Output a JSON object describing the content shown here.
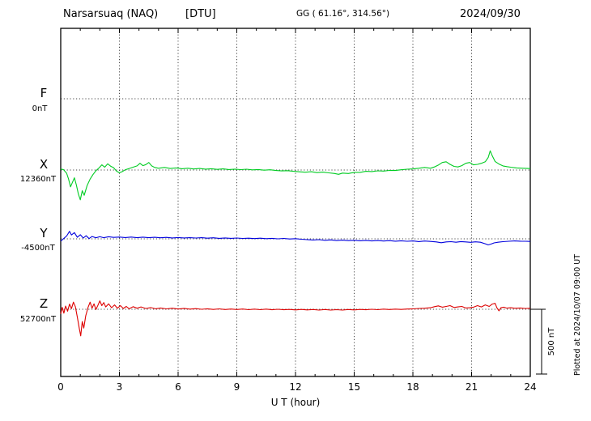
{
  "header": {
    "station": "Narsarsuaq (NAQ)",
    "institute": "[DTU]",
    "coords": "GG ( 61.16°, 314.56°)",
    "date": "2024/09/30"
  },
  "scale_bar": {
    "label": "500 nT"
  },
  "footer": {
    "plotted_at": "Plotted at 2024/10/07 09:00 UT"
  },
  "chart_data": {
    "type": "line",
    "title": "Narsarsuaq (NAQ) [DTU] magnetogram 2024/09/30",
    "xlabel": "U T (hour)",
    "x_range": [
      0,
      24
    ],
    "x_ticks": [
      "0",
      "3",
      "6",
      "9",
      "12",
      "15",
      "18",
      "21",
      "24"
    ],
    "y_scale_bar_nT": 500,
    "unit": "nT",
    "legend_position": "left",
    "grid": "dotted",
    "series": [
      {
        "name": "F",
        "baseline_value_label": "0nT",
        "color": "#ffa500",
        "plotted": false,
        "points": [
          [
            0,
            0
          ],
          [
            24,
            0
          ]
        ]
      },
      {
        "name": "X",
        "baseline_value_label": "12360nT",
        "color": "#00cc22",
        "plotted": true,
        "points": [
          [
            0,
            8
          ],
          [
            0.15,
            2
          ],
          [
            0.3,
            -25
          ],
          [
            0.4,
            -70
          ],
          [
            0.5,
            -130
          ],
          [
            0.6,
            -95
          ],
          [
            0.7,
            -60
          ],
          [
            0.8,
            -115
          ],
          [
            0.9,
            -185
          ],
          [
            1.0,
            -230
          ],
          [
            1.1,
            -160
          ],
          [
            1.2,
            -195
          ],
          [
            1.35,
            -120
          ],
          [
            1.5,
            -70
          ],
          [
            1.65,
            -35
          ],
          [
            1.8,
            -5
          ],
          [
            1.95,
            15
          ],
          [
            2.1,
            40
          ],
          [
            2.25,
            22
          ],
          [
            2.4,
            48
          ],
          [
            2.55,
            30
          ],
          [
            2.7,
            18
          ],
          [
            2.85,
            -8
          ],
          [
            3.0,
            -22
          ],
          [
            3.15,
            -12
          ],
          [
            3.3,
            2
          ],
          [
            3.5,
            12
          ],
          [
            3.7,
            22
          ],
          [
            3.9,
            32
          ],
          [
            4.05,
            52
          ],
          [
            4.2,
            34
          ],
          [
            4.35,
            42
          ],
          [
            4.5,
            58
          ],
          [
            4.65,
            32
          ],
          [
            4.8,
            20
          ],
          [
            5.0,
            14
          ],
          [
            5.3,
            20
          ],
          [
            5.6,
            12
          ],
          [
            5.9,
            16
          ],
          [
            6.2,
            10
          ],
          [
            6.5,
            14
          ],
          [
            6.8,
            8
          ],
          [
            7.1,
            12
          ],
          [
            7.4,
            7
          ],
          [
            7.7,
            10
          ],
          [
            8.0,
            5
          ],
          [
            8.3,
            9
          ],
          [
            8.6,
            4
          ],
          [
            8.9,
            7
          ],
          [
            9.2,
            3
          ],
          [
            9.5,
            6
          ],
          [
            9.8,
            1
          ],
          [
            10.1,
            4
          ],
          [
            10.4,
            -1
          ],
          [
            10.7,
            2
          ],
          [
            11.0,
            -4
          ],
          [
            11.3,
            -7
          ],
          [
            11.6,
            -5
          ],
          [
            11.9,
            -10
          ],
          [
            12.2,
            -14
          ],
          [
            12.5,
            -17
          ],
          [
            12.8,
            -13
          ],
          [
            13.1,
            -20
          ],
          [
            13.4,
            -16
          ],
          [
            13.7,
            -22
          ],
          [
            14.0,
            -27
          ],
          [
            14.2,
            -33
          ],
          [
            14.4,
            -24
          ],
          [
            14.7,
            -27
          ],
          [
            15.0,
            -18
          ],
          [
            15.3,
            -18
          ],
          [
            15.6,
            -10
          ],
          [
            15.9,
            -12
          ],
          [
            16.2,
            -6
          ],
          [
            16.5,
            -8
          ],
          [
            16.8,
            -3
          ],
          [
            17.1,
            -4
          ],
          [
            17.4,
            2
          ],
          [
            17.7,
            6
          ],
          [
            18.0,
            9
          ],
          [
            18.3,
            14
          ],
          [
            18.6,
            20
          ],
          [
            18.9,
            14
          ],
          [
            19.1,
            24
          ],
          [
            19.3,
            38
          ],
          [
            19.5,
            58
          ],
          [
            19.7,
            64
          ],
          [
            19.9,
            44
          ],
          [
            20.1,
            28
          ],
          [
            20.3,
            24
          ],
          [
            20.5,
            34
          ],
          [
            20.7,
            52
          ],
          [
            20.9,
            58
          ],
          [
            21.1,
            40
          ],
          [
            21.3,
            44
          ],
          [
            21.5,
            52
          ],
          [
            21.7,
            64
          ],
          [
            21.85,
            96
          ],
          [
            21.95,
            148
          ],
          [
            22.05,
            112
          ],
          [
            22.2,
            66
          ],
          [
            22.4,
            46
          ],
          [
            22.6,
            32
          ],
          [
            22.8,
            26
          ],
          [
            23.0,
            22
          ],
          [
            23.3,
            16
          ],
          [
            23.6,
            14
          ],
          [
            24,
            11
          ]
        ]
      },
      {
        "name": "Y",
        "baseline_value_label": "-4500nT",
        "color": "#0000dd",
        "plotted": true,
        "points": [
          [
            0,
            -18
          ],
          [
            0.15,
            2
          ],
          [
            0.3,
            22
          ],
          [
            0.45,
            58
          ],
          [
            0.55,
            30
          ],
          [
            0.7,
            48
          ],
          [
            0.85,
            12
          ],
          [
            1.0,
            32
          ],
          [
            1.15,
            6
          ],
          [
            1.3,
            24
          ],
          [
            1.45,
            2
          ],
          [
            1.6,
            18
          ],
          [
            1.8,
            8
          ],
          [
            2.0,
            16
          ],
          [
            2.2,
            9
          ],
          [
            2.45,
            16
          ],
          [
            2.7,
            11
          ],
          [
            3.0,
            14
          ],
          [
            3.3,
            10
          ],
          [
            3.6,
            14
          ],
          [
            3.9,
            9
          ],
          [
            4.2,
            13
          ],
          [
            4.5,
            9
          ],
          [
            4.8,
            12
          ],
          [
            5.1,
            8
          ],
          [
            5.4,
            11
          ],
          [
            5.7,
            7
          ],
          [
            6.0,
            10
          ],
          [
            6.3,
            7
          ],
          [
            6.6,
            9
          ],
          [
            6.9,
            6
          ],
          [
            7.2,
            9
          ],
          [
            7.5,
            5
          ],
          [
            7.8,
            8
          ],
          [
            8.1,
            4
          ],
          [
            8.4,
            7
          ],
          [
            8.7,
            4
          ],
          [
            9.0,
            6
          ],
          [
            9.3,
            3
          ],
          [
            9.6,
            5
          ],
          [
            9.9,
            2
          ],
          [
            10.2,
            5
          ],
          [
            10.5,
            1
          ],
          [
            10.8,
            4
          ],
          [
            11.1,
            0
          ],
          [
            11.4,
            3
          ],
          [
            11.7,
            -1
          ],
          [
            12.0,
            1
          ],
          [
            12.3,
            -3
          ],
          [
            12.6,
            -6
          ],
          [
            12.9,
            -9
          ],
          [
            13.2,
            -6
          ],
          [
            13.5,
            -11
          ],
          [
            13.8,
            -8
          ],
          [
            14.1,
            -13
          ],
          [
            14.4,
            -10
          ],
          [
            14.7,
            -14
          ],
          [
            15.0,
            -11
          ],
          [
            15.3,
            -15
          ],
          [
            15.6,
            -12
          ],
          [
            15.9,
            -16
          ],
          [
            16.2,
            -13
          ],
          [
            16.5,
            -17
          ],
          [
            16.8,
            -14
          ],
          [
            17.1,
            -18
          ],
          [
            17.4,
            -15
          ],
          [
            17.7,
            -19
          ],
          [
            18.0,
            -16
          ],
          [
            18.3,
            -21
          ],
          [
            18.6,
            -17
          ],
          [
            18.9,
            -20
          ],
          [
            19.2,
            -24
          ],
          [
            19.45,
            -30
          ],
          [
            19.7,
            -24
          ],
          [
            19.95,
            -22
          ],
          [
            20.2,
            -26
          ],
          [
            20.45,
            -21
          ],
          [
            20.7,
            -24
          ],
          [
            20.95,
            -27
          ],
          [
            21.2,
            -23
          ],
          [
            21.45,
            -26
          ],
          [
            21.7,
            -38
          ],
          [
            21.85,
            -47
          ],
          [
            22.0,
            -40
          ],
          [
            22.15,
            -31
          ],
          [
            22.35,
            -26
          ],
          [
            22.6,
            -22
          ],
          [
            22.9,
            -19
          ],
          [
            23.2,
            -16
          ],
          [
            23.5,
            -18
          ],
          [
            23.75,
            -19
          ],
          [
            24,
            -20
          ]
        ]
      },
      {
        "name": "Z",
        "baseline_value_label": "52700nT",
        "color": "#dd0000",
        "plotted": true,
        "points": [
          [
            0,
            -35
          ],
          [
            0.08,
            15
          ],
          [
            0.16,
            -30
          ],
          [
            0.25,
            25
          ],
          [
            0.35,
            -15
          ],
          [
            0.45,
            40
          ],
          [
            0.55,
            5
          ],
          [
            0.65,
            55
          ],
          [
            0.75,
            20
          ],
          [
            0.85,
            -60
          ],
          [
            0.95,
            -150
          ],
          [
            1.02,
            -205
          ],
          [
            1.1,
            -95
          ],
          [
            1.18,
            -145
          ],
          [
            1.28,
            -50
          ],
          [
            1.4,
            15
          ],
          [
            1.5,
            55
          ],
          [
            1.6,
            8
          ],
          [
            1.7,
            42
          ],
          [
            1.8,
            -2
          ],
          [
            1.9,
            30
          ],
          [
            2.0,
            65
          ],
          [
            2.1,
            28
          ],
          [
            2.2,
            52
          ],
          [
            2.3,
            18
          ],
          [
            2.45,
            42
          ],
          [
            2.6,
            12
          ],
          [
            2.75,
            34
          ],
          [
            2.9,
            8
          ],
          [
            3.05,
            28
          ],
          [
            3.2,
            6
          ],
          [
            3.35,
            22
          ],
          [
            3.5,
            4
          ],
          [
            3.7,
            20
          ],
          [
            3.9,
            8
          ],
          [
            4.1,
            18
          ],
          [
            4.35,
            6
          ],
          [
            4.6,
            13
          ],
          [
            4.85,
            4
          ],
          [
            5.1,
            10
          ],
          [
            5.4,
            3
          ],
          [
            5.7,
            8
          ],
          [
            6.0,
            2
          ],
          [
            6.3,
            7
          ],
          [
            6.6,
            1
          ],
          [
            6.9,
            5
          ],
          [
            7.2,
            0
          ],
          [
            7.5,
            4
          ],
          [
            7.8,
            -1
          ],
          [
            8.1,
            3
          ],
          [
            8.4,
            -2
          ],
          [
            8.7,
            2
          ],
          [
            9.0,
            -2
          ],
          [
            9.3,
            2
          ],
          [
            9.6,
            -3
          ],
          [
            9.9,
            1
          ],
          [
            10.2,
            -3
          ],
          [
            10.5,
            1
          ],
          [
            10.8,
            -4
          ],
          [
            11.1,
            0
          ],
          [
            11.4,
            -4
          ],
          [
            11.7,
            -1
          ],
          [
            12.0,
            -5
          ],
          [
            12.3,
            -1
          ],
          [
            12.6,
            -5
          ],
          [
            12.9,
            -2
          ],
          [
            13.2,
            -6
          ],
          [
            13.5,
            -2
          ],
          [
            13.8,
            -6
          ],
          [
            14.1,
            -3
          ],
          [
            14.4,
            -6
          ],
          [
            14.7,
            -2
          ],
          [
            15.0,
            -5
          ],
          [
            15.3,
            -1
          ],
          [
            15.6,
            -4
          ],
          [
            15.9,
            0
          ],
          [
            16.2,
            -3
          ],
          [
            16.5,
            1
          ],
          [
            16.8,
            -2
          ],
          [
            17.1,
            1
          ],
          [
            17.4,
            -1
          ],
          [
            17.7,
            2
          ],
          [
            18.0,
            3
          ],
          [
            18.3,
            6
          ],
          [
            18.6,
            8
          ],
          [
            18.9,
            12
          ],
          [
            19.1,
            20
          ],
          [
            19.3,
            26
          ],
          [
            19.5,
            16
          ],
          [
            19.7,
            22
          ],
          [
            19.9,
            28
          ],
          [
            20.1,
            14
          ],
          [
            20.3,
            18
          ],
          [
            20.5,
            22
          ],
          [
            20.7,
            10
          ],
          [
            20.9,
            12
          ],
          [
            21.1,
            16
          ],
          [
            21.3,
            28
          ],
          [
            21.5,
            18
          ],
          [
            21.7,
            34
          ],
          [
            21.9,
            22
          ],
          [
            22.05,
            40
          ],
          [
            22.2,
            46
          ],
          [
            22.3,
            10
          ],
          [
            22.4,
            -12
          ],
          [
            22.5,
            12
          ],
          [
            22.65,
            16
          ],
          [
            22.8,
            9
          ],
          [
            23.0,
            12
          ],
          [
            23.2,
            8
          ],
          [
            23.5,
            10
          ],
          [
            23.75,
            6
          ],
          [
            24,
            8
          ]
        ]
      }
    ]
  }
}
